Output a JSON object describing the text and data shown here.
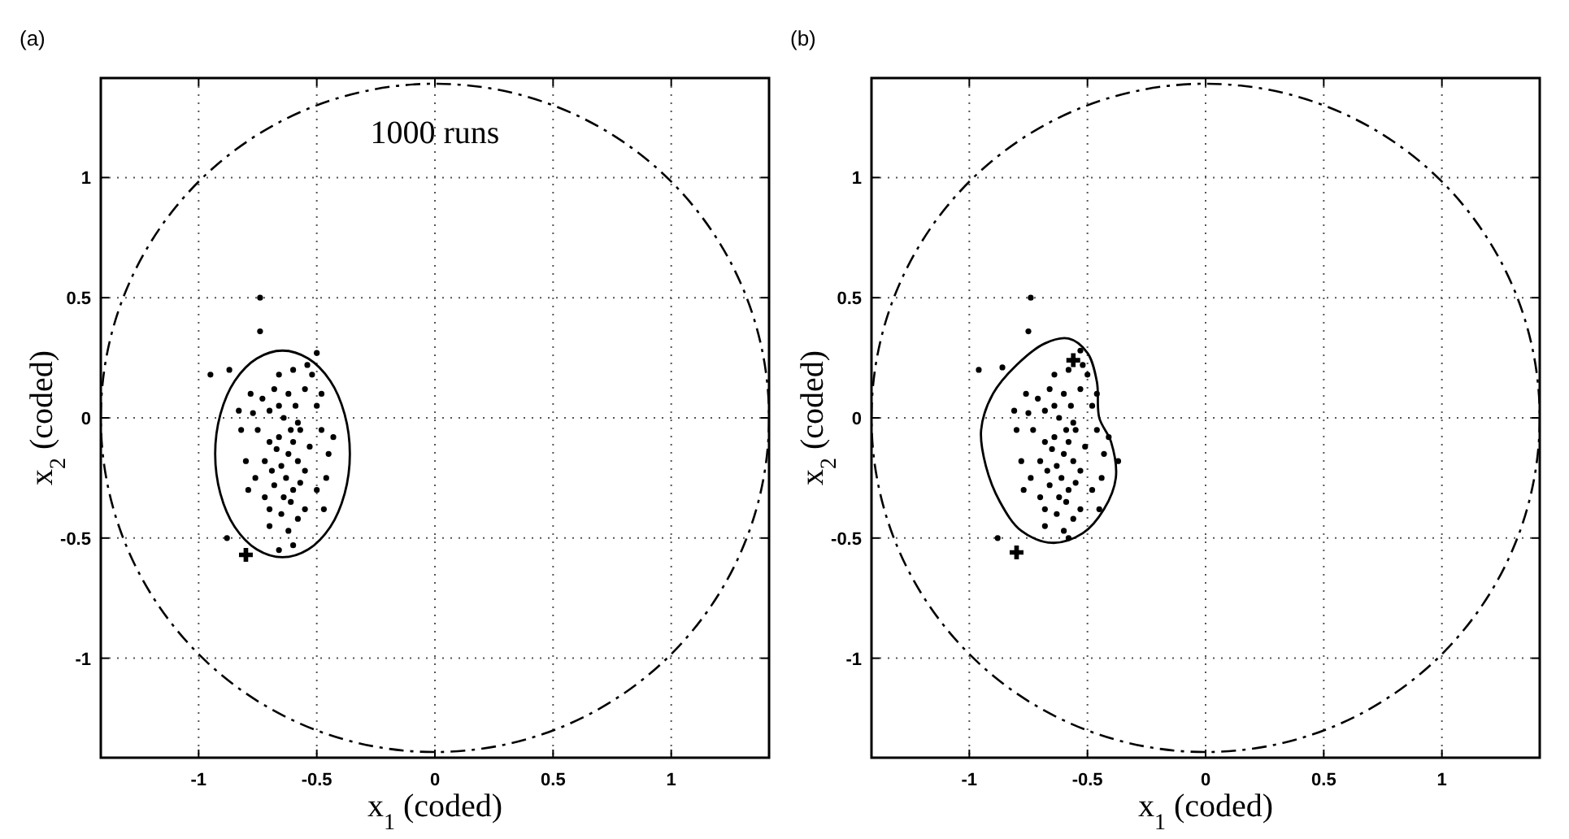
{
  "chart_data": [
    {
      "type": "scatter",
      "title": "(a)",
      "xlabel": "x$_{1}$ (coded)",
      "ylabel": "x$_{2}$ (coded)",
      "xlim": [
        -1.414,
        1.414
      ],
      "ylim": [
        -1.414,
        1.414
      ],
      "xticks": [
        -1,
        -0.5,
        0,
        0.5,
        1
      ],
      "yticks": [
        -1,
        -0.5,
        0,
        0.5,
        1
      ],
      "grid": true,
      "annotations": [
        "1000 runs"
      ],
      "series": [
        {
          "type": "scatter",
          "color": "#000000",
          "marker": "circle",
          "x": [
            -0.62,
            -0.6,
            -0.65,
            -0.58,
            -0.66,
            -0.63,
            -0.6,
            -0.67,
            -0.57,
            -0.64,
            -0.7,
            -0.55,
            -0.61,
            -0.68,
            -0.59,
            -0.72,
            -0.53,
            -0.65,
            -0.58,
            -0.7,
            -0.62,
            -0.55,
            -0.68,
            -0.75,
            -0.76,
            -0.5,
            -0.48,
            -0.52,
            -0.6,
            -0.66,
            -0.73,
            -0.8,
            -0.82,
            -0.78,
            -0.45,
            -0.46,
            -0.5,
            -0.7,
            -0.55,
            -0.62,
            -0.7,
            -0.54,
            -0.58,
            -0.64,
            -0.57,
            -0.69,
            -0.61,
            -0.66,
            -0.79,
            -0.77,
            -0.48,
            -0.43,
            -0.47,
            -0.72,
            -0.83,
            -0.6,
            -0.74,
            -0.74,
            -0.95,
            -0.87,
            -0.5,
            -0.88,
            -0.66
          ],
          "values": [
            -0.15,
            -0.1,
            -0.2,
            -0.18,
            -0.08,
            -0.25,
            -0.3,
            -0.13,
            -0.05,
            0.0,
            -0.1,
            -0.22,
            -0.35,
            -0.28,
            0.05,
            -0.18,
            -0.12,
            -0.4,
            -0.42,
            0.03,
            0.1,
            0.12,
            0.12,
            -0.05,
            -0.25,
            -0.3,
            -0.05,
            0.18,
            0.2,
            0.18,
            0.08,
            -0.18,
            -0.05,
            0.1,
            -0.15,
            -0.25,
            0.05,
            -0.38,
            -0.38,
            -0.47,
            -0.45,
            0.22,
            -0.02,
            -0.33,
            -0.27,
            -0.22,
            -0.05,
            0.05,
            -0.3,
            0.02,
            0.1,
            -0.08,
            -0.38,
            -0.33,
            0.03,
            -0.53,
            0.5,
            0.36,
            0.18,
            0.2,
            0.27,
            -0.5,
            -0.55
          ]
        },
        {
          "type": "scatter",
          "color": "#000000",
          "marker": "cross",
          "x": [
            -0.8
          ],
          "values": [
            -0.57
          ]
        }
      ]
    },
    {
      "type": "scatter",
      "title": "(b)",
      "xlabel": "x$_{1}$ (coded)",
      "ylabel": "x$_{2}$ (coded)",
      "xlim": [
        -1.414,
        1.414
      ],
      "ylim": [
        -1.414,
        1.414
      ],
      "xticks": [
        -1,
        -0.5,
        0,
        0.5,
        1
      ],
      "yticks": [
        -1,
        -0.5,
        0,
        0.5,
        1
      ],
      "grid": true,
      "series": [
        {
          "type": "scatter",
          "color": "#000000",
          "marker": "circle",
          "x": [
            -0.6,
            -0.58,
            -0.63,
            -0.56,
            -0.64,
            -0.61,
            -0.58,
            -0.65,
            -0.55,
            -0.62,
            -0.68,
            -0.53,
            -0.59,
            -0.66,
            -0.57,
            -0.7,
            -0.51,
            -0.63,
            -0.56,
            -0.68,
            -0.6,
            -0.53,
            -0.66,
            -0.73,
            -0.74,
            -0.48,
            -0.46,
            -0.5,
            -0.58,
            -0.64,
            -0.71,
            -0.78,
            -0.8,
            -0.76,
            -0.43,
            -0.44,
            -0.48,
            -0.68,
            -0.53,
            -0.6,
            -0.68,
            -0.52,
            -0.56,
            -0.62,
            -0.55,
            -0.67,
            -0.59,
            -0.64,
            -0.77,
            -0.75,
            -0.46,
            -0.41,
            -0.45,
            -0.7,
            -0.81,
            -0.58,
            -0.74,
            -0.75,
            -0.96,
            -0.86,
            -0.37,
            -0.88,
            -0.53
          ],
          "values": [
            -0.15,
            -0.1,
            -0.2,
            -0.18,
            -0.08,
            -0.25,
            -0.3,
            -0.13,
            -0.05,
            0.0,
            -0.1,
            -0.22,
            -0.35,
            -0.28,
            0.05,
            -0.18,
            -0.12,
            -0.4,
            -0.42,
            0.03,
            0.1,
            0.12,
            0.12,
            -0.05,
            -0.25,
            -0.3,
            -0.05,
            0.18,
            0.2,
            0.18,
            0.08,
            -0.18,
            -0.05,
            0.1,
            -0.15,
            -0.25,
            0.05,
            -0.38,
            -0.38,
            -0.47,
            -0.45,
            0.22,
            -0.02,
            -0.33,
            -0.27,
            -0.22,
            -0.05,
            0.05,
            -0.3,
            0.02,
            0.1,
            -0.08,
            -0.38,
            -0.33,
            0.03,
            -0.5,
            0.5,
            0.36,
            0.2,
            0.21,
            -0.18,
            -0.5,
            0.28
          ]
        },
        {
          "type": "scatter",
          "color": "#000000",
          "marker": "cross",
          "x": [
            -0.8,
            -0.56
          ],
          "values": [
            -0.56,
            0.24
          ]
        }
      ]
    }
  ]
}
